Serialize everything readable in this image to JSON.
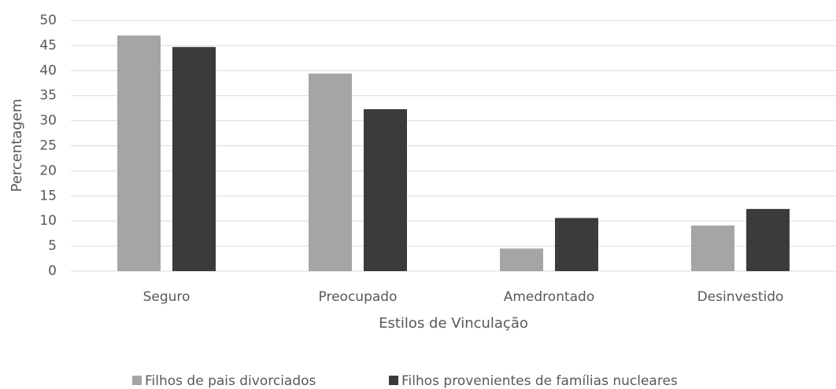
{
  "chart_data": {
    "type": "bar",
    "categories": [
      "Seguro",
      "Preocupado",
      "Amedrontado",
      "Desinvestido"
    ],
    "series": [
      {
        "name": "Filhos de pais divorciados",
        "color": "#a5a5a5",
        "values": [
          47,
          39.4,
          4.5,
          9.1
        ]
      },
      {
        "name": "Filhos provenientes de famílias nucleares",
        "color": "#3b3b3b",
        "values": [
          44.7,
          32.3,
          10.6,
          12.4
        ]
      }
    ],
    "x_label": "Estilos de Vinculação",
    "y_label": "Percentagem",
    "ylim": [
      0,
      50
    ],
    "yticks": [
      0,
      5,
      10,
      15,
      20,
      25,
      30,
      35,
      40,
      45,
      50
    ],
    "grid": true,
    "legend": "bottom"
  }
}
